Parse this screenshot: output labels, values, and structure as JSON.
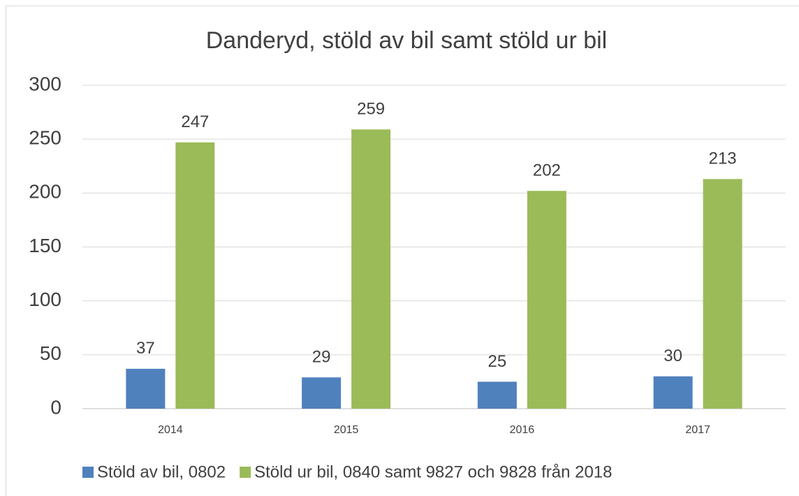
{
  "chart_data": {
    "type": "bar",
    "title": "Danderyd, stöld av bil samt stöld ur bil",
    "categories": [
      "2014",
      "2015",
      "2016",
      "2017"
    ],
    "series": [
      {
        "name": "Stöld av bil, 0802",
        "color": "#4f81bd",
        "values": [
          37,
          29,
          25,
          30
        ]
      },
      {
        "name": "Stöld ur bil, 0840 samt 9827 och 9828 från 2018",
        "color": "#9bbb59",
        "values": [
          247,
          259,
          202,
          213
        ]
      }
    ],
    "ylim": [
      0,
      300
    ],
    "yticks": [
      0,
      50,
      100,
      150,
      200,
      250,
      300
    ],
    "grid": true,
    "legend": "bottom"
  }
}
